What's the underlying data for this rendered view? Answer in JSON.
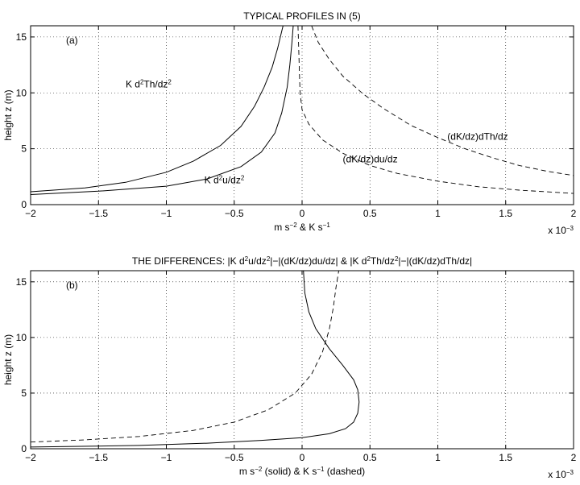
{
  "chart_data": [
    {
      "type": "line",
      "title": "TYPICAL PROFILES IN (5)",
      "panel_label": "(a)",
      "xlabel": "m s^-2 & K s^-1",
      "ylabel": "height z (m)",
      "x_scale_note": "x 10^-3",
      "xlim": [
        -2,
        2
      ],
      "ylim": [
        0,
        16
      ],
      "xticks": [
        "-2",
        "-1.5",
        "-1",
        "-0.5",
        "0",
        "0.5",
        "1",
        "1.5",
        "2"
      ],
      "yticks": [
        "0",
        "5",
        "10",
        "15"
      ],
      "grid": true,
      "series": [
        {
          "name": "K d2Th/dz2",
          "style": "solid",
          "points": [
            [
              -2.0,
              1.15
            ],
            [
              -1.6,
              1.5
            ],
            [
              -1.3,
              2.0
            ],
            [
              -1.0,
              2.9
            ],
            [
              -0.8,
              3.9
            ],
            [
              -0.6,
              5.3
            ],
            [
              -0.45,
              7.0
            ],
            [
              -0.35,
              8.8
            ],
            [
              -0.28,
              10.5
            ],
            [
              -0.22,
              12.3
            ],
            [
              -0.18,
              14.0
            ],
            [
              -0.15,
              15.5
            ],
            [
              -0.14,
              16.0
            ]
          ]
        },
        {
          "name": "K d2u/dz2",
          "style": "solid",
          "points": [
            [
              -2.0,
              0.9
            ],
            [
              -1.5,
              1.2
            ],
            [
              -1.0,
              1.65
            ],
            [
              -0.7,
              2.3
            ],
            [
              -0.45,
              3.4
            ],
            [
              -0.3,
              4.7
            ],
            [
              -0.2,
              6.4
            ],
            [
              -0.15,
              8.2
            ],
            [
              -0.11,
              10.5
            ],
            [
              -0.09,
              12.5
            ],
            [
              -0.075,
              14.5
            ],
            [
              -0.065,
              16.0
            ]
          ]
        },
        {
          "name": "(dK/dz)du/dz",
          "style": "dashed",
          "points": [
            [
              -0.03,
              16.0
            ],
            [
              -0.025,
              14.0
            ],
            [
              -0.02,
              12.0
            ],
            [
              -0.015,
              10.0
            ],
            [
              0.0,
              8.5
            ],
            [
              0.05,
              7.2
            ],
            [
              0.15,
              5.8
            ],
            [
              0.3,
              4.6
            ],
            [
              0.5,
              3.5
            ],
            [
              0.7,
              2.8
            ],
            [
              1.0,
              2.1
            ],
            [
              1.3,
              1.6
            ],
            [
              1.6,
              1.3
            ],
            [
              2.0,
              1.0
            ]
          ]
        },
        {
          "name": "(dK/dz)dTh/dz",
          "style": "dashed",
          "points": [
            [
              0.07,
              16.0
            ],
            [
              0.12,
              14.5
            ],
            [
              0.2,
              13.0
            ],
            [
              0.3,
              11.5
            ],
            [
              0.45,
              9.9
            ],
            [
              0.6,
              8.6
            ],
            [
              0.8,
              7.1
            ],
            [
              1.0,
              6.0
            ],
            [
              1.2,
              5.0
            ],
            [
              1.4,
              4.2
            ],
            [
              1.6,
              3.5
            ],
            [
              1.8,
              3.0
            ],
            [
              2.0,
              2.6
            ]
          ]
        }
      ],
      "annotations": [
        {
          "text": "K d2Th/dz2",
          "x": -1.3,
          "y": 10.5
        },
        {
          "text": "K d2u/dz2",
          "x": -0.72,
          "y": 1.9
        },
        {
          "text": "(dK/dz)du/dz",
          "x": 0.3,
          "y": 3.8
        },
        {
          "text": "(dK/dz)dTh/dz",
          "x": 1.07,
          "y": 5.8
        }
      ]
    },
    {
      "type": "line",
      "title": "THE DIFFERENCES: |K d2u/dz2|−|(dK/dz)du/dz| & |K d2Th/dz2|−|(dK/dz)dTh/dz|",
      "panel_label": "(b)",
      "xlabel": "m s^-2 (solid) & K s^-1 (dashed)",
      "ylabel": "height z (m)",
      "x_scale_note": "x 10^-3",
      "xlim": [
        -2,
        2
      ],
      "ylim": [
        0,
        16
      ],
      "xticks": [
        "-2",
        "-1.5",
        "-1",
        "-0.5",
        "0",
        "0.5",
        "1",
        "1.5",
        "2"
      ],
      "yticks": [
        "0",
        "5",
        "10",
        "15"
      ],
      "grid": true,
      "series": [
        {
          "name": "solid",
          "style": "solid",
          "points": [
            [
              -2.0,
              0.15
            ],
            [
              -1.2,
              0.3
            ],
            [
              -0.7,
              0.5
            ],
            [
              -0.3,
              0.75
            ],
            [
              0.0,
              1.0
            ],
            [
              0.2,
              1.35
            ],
            [
              0.32,
              1.8
            ],
            [
              0.38,
              2.4
            ],
            [
              0.41,
              3.2
            ],
            [
              0.42,
              4.2
            ],
            [
              0.41,
              5.3
            ],
            [
              0.38,
              6.2
            ],
            [
              0.3,
              7.5
            ],
            [
              0.2,
              9.0
            ],
            [
              0.1,
              10.8
            ],
            [
              0.05,
              12.3
            ],
            [
              0.02,
              14.0
            ],
            [
              0.01,
              16.0
            ]
          ]
        },
        {
          "name": "dashed",
          "style": "dashed",
          "points": [
            [
              -2.0,
              0.6
            ],
            [
              -1.6,
              0.8
            ],
            [
              -1.2,
              1.1
            ],
            [
              -0.8,
              1.65
            ],
            [
              -0.5,
              2.4
            ],
            [
              -0.25,
              3.5
            ],
            [
              -0.05,
              5.0
            ],
            [
              0.07,
              6.7
            ],
            [
              0.15,
              8.7
            ],
            [
              0.2,
              10.7
            ],
            [
              0.23,
              12.7
            ],
            [
              0.25,
              14.5
            ],
            [
              0.27,
              16.0
            ]
          ]
        }
      ]
    }
  ]
}
